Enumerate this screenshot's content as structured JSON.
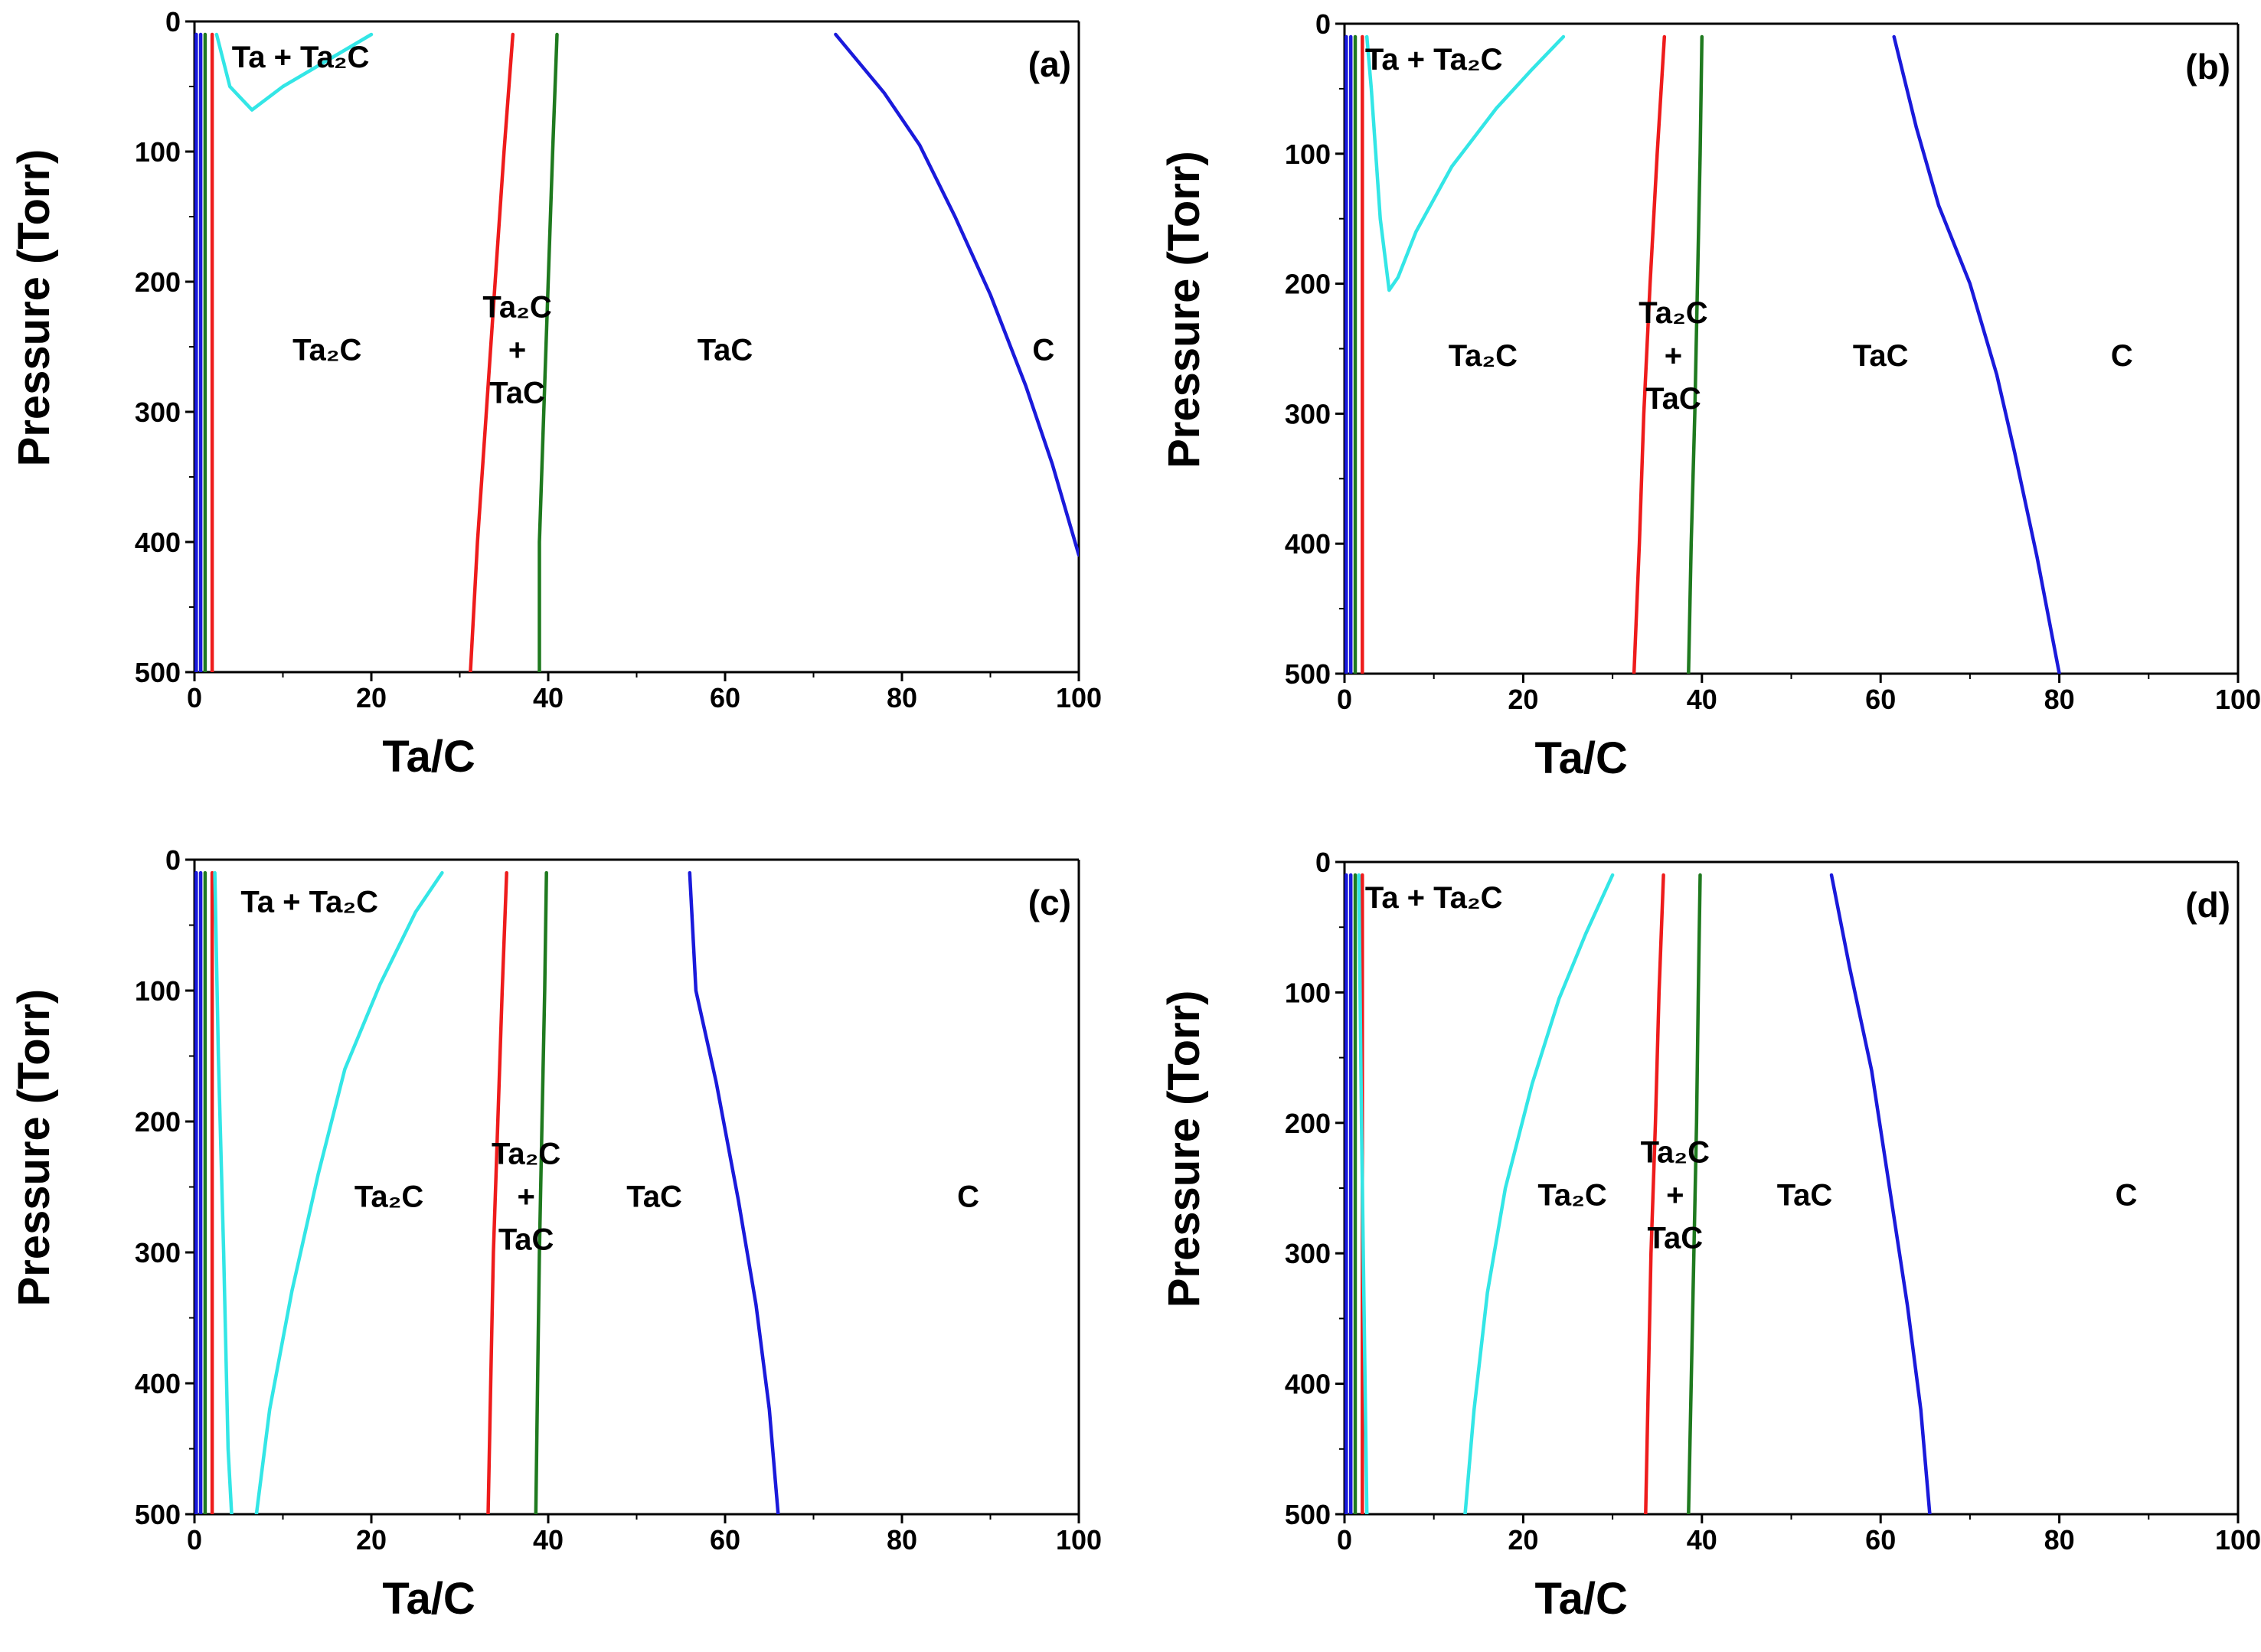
{
  "colors": {
    "blue": "#1a1adb",
    "red": "#ee1c1c",
    "green": "#1f7a1f",
    "cyan": "#33e6e6",
    "axis": "#000000"
  },
  "chart_data": [
    {
      "type": "line",
      "panel_label": "(a)",
      "xlabel": "Ta/C",
      "ylabel": "Pressure (Torr)",
      "xlim": [
        0,
        100
      ],
      "ylim": [
        0,
        500
      ],
      "y_inverted": true,
      "x_ticks": [
        0,
        20,
        40,
        60,
        80,
        100
      ],
      "y_ticks": [
        0,
        100,
        200,
        300,
        400,
        500
      ],
      "annotations": [
        {
          "lines": [
            "Ta + Ta₂C"
          ],
          "x": 12,
          "y": 27
        },
        {
          "lines": [
            "Ta₂C"
          ],
          "x": 15,
          "y": 252
        },
        {
          "lines": [
            "Ta₂C",
            "+",
            "TaC"
          ],
          "x": 36.5,
          "y": 252
        },
        {
          "lines": [
            "TaC"
          ],
          "x": 60,
          "y": 252
        },
        {
          "lines": [
            "C"
          ],
          "x": 96,
          "y": 252
        }
      ],
      "series": [
        {
          "color": "blue",
          "points": [
            [
              0.2,
              10
            ],
            [
              0.2,
              500
            ]
          ]
        },
        {
          "color": "blue",
          "points": [
            [
              0.7,
              10
            ],
            [
              0.7,
              500
            ]
          ]
        },
        {
          "color": "green",
          "points": [
            [
              1.2,
              10
            ],
            [
              1.2,
              500
            ]
          ]
        },
        {
          "color": "red",
          "points": [
            [
              2.0,
              10
            ],
            [
              2.0,
              500
            ]
          ]
        },
        {
          "color": "cyan",
          "points": [
            [
              2.5,
              10
            ],
            [
              4,
              50
            ],
            [
              6.5,
              68
            ],
            [
              10,
              50
            ],
            [
              15,
              30
            ],
            [
              20,
              10
            ]
          ]
        },
        {
          "color": "red",
          "points": [
            [
              36.0,
              10
            ],
            [
              35,
              100
            ],
            [
              34,
              200
            ],
            [
              33,
              300
            ],
            [
              32,
              400
            ],
            [
              31.2,
              500
            ]
          ]
        },
        {
          "color": "green",
          "points": [
            [
              41.0,
              10
            ],
            [
              40.5,
              100
            ],
            [
              40,
              200
            ],
            [
              39.5,
              300
            ],
            [
              39,
              400
            ],
            [
              39,
              500
            ]
          ]
        },
        {
          "color": "blue",
          "points": [
            [
              72.5,
              10
            ],
            [
              78,
              55
            ],
            [
              82,
              95
            ],
            [
              86,
              150
            ],
            [
              90,
              210
            ],
            [
              94,
              280
            ],
            [
              97,
              340
            ],
            [
              100,
              410
            ]
          ]
        }
      ]
    },
    {
      "type": "line",
      "panel_label": "(b)",
      "xlabel": "Ta/C",
      "ylabel": "Pressure (Torr)",
      "xlim": [
        0,
        100
      ],
      "ylim": [
        0,
        500
      ],
      "y_inverted": true,
      "x_ticks": [
        0,
        20,
        40,
        60,
        80,
        100
      ],
      "y_ticks": [
        0,
        100,
        200,
        300,
        400,
        500
      ],
      "annotations": [
        {
          "lines": [
            "Ta + Ta₂C"
          ],
          "x": 10,
          "y": 27
        },
        {
          "lines": [
            "Ta₂C"
          ],
          "x": 15.5,
          "y": 255
        },
        {
          "lines": [
            "Ta₂C",
            "+",
            "TaC"
          ],
          "x": 36.8,
          "y": 255
        },
        {
          "lines": [
            "TaC"
          ],
          "x": 60,
          "y": 255
        },
        {
          "lines": [
            "C"
          ],
          "x": 87,
          "y": 255
        }
      ],
      "series": [
        {
          "color": "blue",
          "points": [
            [
              0.2,
              10
            ],
            [
              0.2,
              500
            ]
          ]
        },
        {
          "color": "blue",
          "points": [
            [
              0.7,
              10
            ],
            [
              0.7,
              500
            ]
          ]
        },
        {
          "color": "green",
          "points": [
            [
              1.2,
              10
            ],
            [
              1.2,
              500
            ]
          ]
        },
        {
          "color": "red",
          "points": [
            [
              2.0,
              10
            ],
            [
              2.0,
              500
            ]
          ]
        },
        {
          "color": "cyan",
          "points": [
            [
              2.5,
              10
            ],
            [
              3,
              50
            ],
            [
              4,
              150
            ],
            [
              5,
              205
            ],
            [
              6,
              195
            ],
            [
              8,
              160
            ],
            [
              12,
              110
            ],
            [
              17,
              65
            ],
            [
              21,
              35
            ],
            [
              24.5,
              10
            ]
          ]
        },
        {
          "color": "red",
          "points": [
            [
              35.8,
              10
            ],
            [
              35,
              100
            ],
            [
              34.2,
              200
            ],
            [
              33.5,
              300
            ],
            [
              33,
              400
            ],
            [
              32.4,
              500
            ]
          ]
        },
        {
          "color": "green",
          "points": [
            [
              40.0,
              10
            ],
            [
              39.8,
              100
            ],
            [
              39.5,
              200
            ],
            [
              39.2,
              300
            ],
            [
              38.8,
              400
            ],
            [
              38.5,
              500
            ]
          ]
        },
        {
          "color": "blue",
          "points": [
            [
              61.5,
              10
            ],
            [
              64,
              80
            ],
            [
              66.5,
              140
            ],
            [
              70,
              200
            ],
            [
              73,
              270
            ],
            [
              75,
              330
            ],
            [
              77.5,
              410
            ],
            [
              80,
              500
            ]
          ]
        }
      ]
    },
    {
      "type": "line",
      "panel_label": "(c)",
      "xlabel": "Ta/C",
      "ylabel": "Pressure (Torr)",
      "xlim": [
        0,
        100
      ],
      "ylim": [
        0,
        500
      ],
      "y_inverted": true,
      "x_ticks": [
        0,
        20,
        40,
        60,
        80,
        100
      ],
      "y_ticks": [
        0,
        100,
        200,
        300,
        400,
        500
      ],
      "annotations": [
        {
          "lines": [
            "Ta + Ta₂C"
          ],
          "x": 13,
          "y": 32
        },
        {
          "lines": [
            "Ta₂C"
          ],
          "x": 22,
          "y": 257
        },
        {
          "lines": [
            "Ta₂C",
            "+",
            "TaC"
          ],
          "x": 37.5,
          "y": 257
        },
        {
          "lines": [
            "TaC"
          ],
          "x": 52,
          "y": 257
        },
        {
          "lines": [
            "C"
          ],
          "x": 87.5,
          "y": 257
        }
      ],
      "series": [
        {
          "color": "blue",
          "points": [
            [
              0.2,
              10
            ],
            [
              0.2,
              500
            ]
          ]
        },
        {
          "color": "blue",
          "points": [
            [
              0.7,
              10
            ],
            [
              0.7,
              500
            ]
          ]
        },
        {
          "color": "green",
          "points": [
            [
              1.2,
              10
            ],
            [
              1.2,
              500
            ]
          ]
        },
        {
          "color": "red",
          "points": [
            [
              2.0,
              10
            ],
            [
              2.0,
              500
            ]
          ]
        },
        {
          "color": "cyan",
          "points": [
            [
              2.3,
              10
            ],
            [
              2.7,
              150
            ],
            [
              3.3,
              300
            ],
            [
              3.8,
              450
            ],
            [
              4.2,
              500
            ]
          ]
        },
        {
          "color": "cyan",
          "points": [
            [
              7.0,
              500
            ],
            [
              8.5,
              420
            ],
            [
              11,
              330
            ],
            [
              14,
              240
            ],
            [
              17,
              160
            ],
            [
              21,
              95
            ],
            [
              25,
              40
            ],
            [
              28,
              10
            ]
          ]
        },
        {
          "color": "red",
          "points": [
            [
              35.3,
              10
            ],
            [
              34.8,
              100
            ],
            [
              34.3,
              200
            ],
            [
              33.8,
              300
            ],
            [
              33.5,
              400
            ],
            [
              33.2,
              500
            ]
          ]
        },
        {
          "color": "green",
          "points": [
            [
              39.8,
              10
            ],
            [
              39.6,
              100
            ],
            [
              39.3,
              200
            ],
            [
              39,
              300
            ],
            [
              38.8,
              400
            ],
            [
              38.6,
              500
            ]
          ]
        },
        {
          "color": "blue",
          "points": [
            [
              56.0,
              10
            ],
            [
              56.7,
              100
            ],
            [
              59,
              170
            ],
            [
              61.5,
              260
            ],
            [
              63.5,
              340
            ],
            [
              65,
              420
            ],
            [
              66,
              500
            ]
          ]
        }
      ]
    },
    {
      "type": "line",
      "panel_label": "(d)",
      "xlabel": "Ta/C",
      "ylabel": "Pressure (Torr)",
      "xlim": [
        0,
        100
      ],
      "ylim": [
        0,
        500
      ],
      "y_inverted": true,
      "x_ticks": [
        0,
        20,
        40,
        60,
        80,
        100
      ],
      "y_ticks": [
        0,
        100,
        200,
        300,
        400,
        500
      ],
      "annotations": [
        {
          "lines": [
            "Ta + Ta₂C"
          ],
          "x": 10,
          "y": 27
        },
        {
          "lines": [
            "Ta₂C"
          ],
          "x": 25.5,
          "y": 255
        },
        {
          "lines": [
            "Ta₂C",
            "+",
            "TaC"
          ],
          "x": 37,
          "y": 255
        },
        {
          "lines": [
            "TaC"
          ],
          "x": 51.5,
          "y": 255
        },
        {
          "lines": [
            "C"
          ],
          "x": 87.5,
          "y": 255
        }
      ],
      "series": [
        {
          "color": "blue",
          "points": [
            [
              0.2,
              10
            ],
            [
              0.2,
              500
            ]
          ]
        },
        {
          "color": "blue",
          "points": [
            [
              0.7,
              10
            ],
            [
              0.7,
              500
            ]
          ]
        },
        {
          "color": "green",
          "points": [
            [
              1.2,
              10
            ],
            [
              1.2,
              500
            ]
          ]
        },
        {
          "color": "red",
          "points": [
            [
              2.0,
              10
            ],
            [
              2.0,
              500
            ]
          ]
        },
        {
          "color": "cyan",
          "points": [
            [
              1.6,
              10
            ],
            [
              1.9,
              200
            ],
            [
              2.2,
              350
            ],
            [
              2.5,
              500
            ]
          ]
        },
        {
          "color": "cyan",
          "points": [
            [
              13.5,
              500
            ],
            [
              14.5,
              420
            ],
            [
              16,
              330
            ],
            [
              18,
              250
            ],
            [
              21,
              170
            ],
            [
              24,
              105
            ],
            [
              27,
              55
            ],
            [
              30,
              10
            ]
          ]
        },
        {
          "color": "red",
          "points": [
            [
              35.7,
              10
            ],
            [
              35.2,
              100
            ],
            [
              34.8,
              200
            ],
            [
              34.3,
              300
            ],
            [
              34,
              400
            ],
            [
              33.7,
              500
            ]
          ]
        },
        {
          "color": "green",
          "points": [
            [
              39.8,
              10
            ],
            [
              39.6,
              100
            ],
            [
              39.4,
              200
            ],
            [
              39.1,
              300
            ],
            [
              38.8,
              400
            ],
            [
              38.5,
              500
            ]
          ]
        },
        {
          "color": "blue",
          "points": [
            [
              54.5,
              10
            ],
            [
              56.5,
              80
            ],
            [
              59,
              160
            ],
            [
              61,
              250
            ],
            [
              63,
              340
            ],
            [
              64.5,
              420
            ],
            [
              65.5,
              500
            ]
          ]
        }
      ]
    }
  ]
}
